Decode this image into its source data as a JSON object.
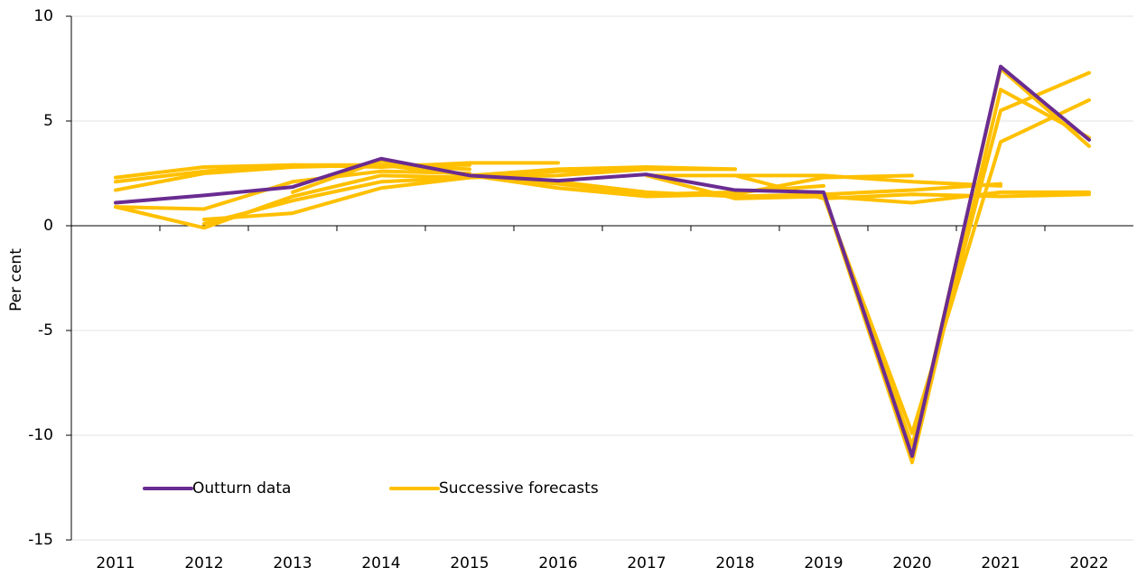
{
  "chart_data": {
    "type": "line",
    "y_label": "Per cent",
    "categories": [
      "2011",
      "2012",
      "2013",
      "2014",
      "2015",
      "2016",
      "2017",
      "2018",
      "2019",
      "2020",
      "2021",
      "2022"
    ],
    "ylim": [
      -15,
      10
    ],
    "yticks": [
      -15,
      -10,
      -5,
      0,
      5,
      10
    ],
    "grid": true,
    "legend": "lower left",
    "series": [
      {
        "name": "Outturn data",
        "color": "#6a2c91",
        "values": [
          1.1,
          1.45,
          1.85,
          3.2,
          2.4,
          2.15,
          2.45,
          1.7,
          1.6,
          -11.0,
          7.6,
          4.1
        ]
      }
    ],
    "forecasts": {
      "name": "Successive forecasts",
      "color": "#ffc000",
      "runs": [
        {
          "values": [
            2.3,
            2.8,
            2.9,
            2.9,
            2.9,
            null,
            null,
            null,
            null,
            null,
            null,
            null
          ]
        },
        {
          "values": [
            2.1,
            2.6,
            2.9,
            2.8,
            3.0,
            3.0,
            null,
            null,
            null,
            null,
            null,
            null
          ]
        },
        {
          "values": [
            1.7,
            2.5,
            2.8,
            2.9,
            2.7,
            null,
            null,
            null,
            null,
            null,
            null,
            null
          ]
        },
        {
          "values": [
            0.9,
            0.8,
            2.1,
            2.6,
            2.5,
            null,
            null,
            null,
            null,
            null,
            null,
            null
          ]
        },
        {
          "values": [
            0.9,
            -0.1,
            1.4,
            2.4,
            2.3,
            null,
            null,
            null,
            null,
            null,
            null,
            null
          ]
        },
        {
          "values": [
            null,
            0.3,
            0.6,
            1.8,
            2.3,
            2.6,
            2.7,
            null,
            null,
            null,
            null,
            null
          ]
        },
        {
          "values": [
            null,
            0.1,
            1.2,
            2.1,
            2.3,
            2.4,
            2.7,
            2.7,
            null,
            null,
            null,
            null
          ]
        },
        {
          "values": [
            null,
            null,
            1.6,
            3.1,
            2.4,
            2.7,
            2.8,
            2.7,
            null,
            null,
            null,
            null
          ]
        },
        {
          "values": [
            null,
            null,
            null,
            2.9,
            2.4,
            2.0,
            1.5,
            1.6,
            1.9,
            null,
            null,
            null
          ]
        },
        {
          "values": [
            null,
            null,
            null,
            null,
            2.4,
            1.8,
            1.4,
            1.5,
            2.3,
            2.4,
            null,
            null
          ]
        },
        {
          "values": [
            null,
            null,
            null,
            null,
            null,
            2.1,
            1.6,
            1.4,
            1.5,
            1.7,
            2.0,
            null
          ]
        },
        {
          "values": [
            null,
            null,
            null,
            null,
            null,
            null,
            2.4,
            2.4,
            2.4,
            2.1,
            1.9,
            null
          ]
        },
        {
          "values": [
            null,
            null,
            null,
            null,
            null,
            null,
            2.4,
            1.3,
            1.4,
            1.1,
            1.6,
            1.6
          ]
        },
        {
          "values": [
            null,
            null,
            null,
            null,
            null,
            null,
            null,
            2.4,
            1.3,
            1.5,
            1.4,
            1.5
          ]
        },
        {
          "values": [
            null,
            null,
            null,
            null,
            null,
            null,
            null,
            null,
            1.4,
            -9.9,
            4.0,
            6.0
          ]
        },
        {
          "values": [
            null,
            null,
            null,
            null,
            null,
            null,
            null,
            null,
            1.5,
            -10.5,
            5.5,
            7.3
          ]
        },
        {
          "values": [
            null,
            null,
            null,
            null,
            null,
            null,
            null,
            null,
            1.5,
            -11.3,
            6.5,
            4.2
          ]
        },
        {
          "values": [
            null,
            null,
            null,
            null,
            null,
            null,
            null,
            null,
            null,
            -10.9,
            7.5,
            3.8
          ]
        }
      ]
    }
  }
}
